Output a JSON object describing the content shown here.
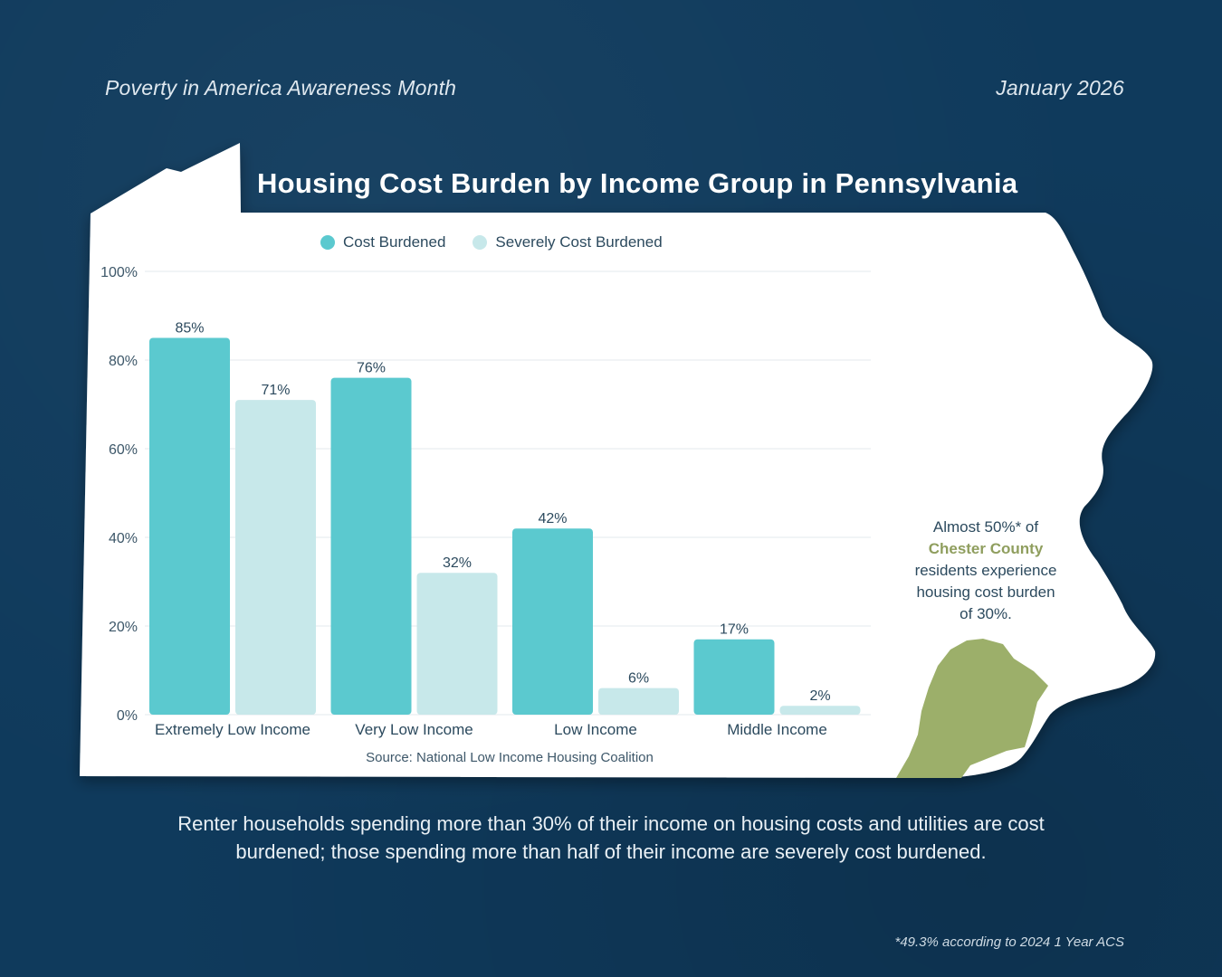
{
  "header": {
    "left": "Poverty in America Awareness Month",
    "right": "January 2026"
  },
  "colors": {
    "background": "#0f3a5c",
    "cost_burdened": "#5bc9cf",
    "severely_cost_burdened": "#c7e8ea",
    "chester_county": "#9caf6a"
  },
  "callout": {
    "line1": "Almost 50%* of",
    "county": "Chester County",
    "line3": "residents experience",
    "line4": "housing cost burden",
    "line5": "of 30%."
  },
  "caption": {
    "line1": "Renter households spending more than 30% of their income on housing costs and utilities are cost",
    "line2": "burdened; those spending more than half of their income are severely cost burdened."
  },
  "footnote": "*49.3% according to 2024 1 Year ACS",
  "chart_data": {
    "type": "bar",
    "title": "Housing Cost Burden by Income Group in Pennsylvania",
    "categories": [
      "Extremely Low Income",
      "Very Low Income",
      "Low Income",
      "Middle Income"
    ],
    "series": [
      {
        "name": "Cost Burdened",
        "values": [
          85,
          76,
          42,
          17
        ],
        "labels": [
          "85%",
          "76%",
          "42%",
          "17%"
        ]
      },
      {
        "name": "Severely Cost Burdened",
        "values": [
          71,
          32,
          6,
          2
        ],
        "labels": [
          "71%",
          "32%",
          "6%",
          "2%"
        ]
      }
    ],
    "ylim": [
      0,
      100
    ],
    "yticks": [
      0,
      20,
      40,
      60,
      80,
      100
    ],
    "ytick_labels": [
      "0%",
      "20%",
      "40%",
      "60%",
      "80%",
      "100%"
    ],
    "grid": true,
    "legend": "top",
    "source": "Source: National Low Income Housing Coalition"
  }
}
